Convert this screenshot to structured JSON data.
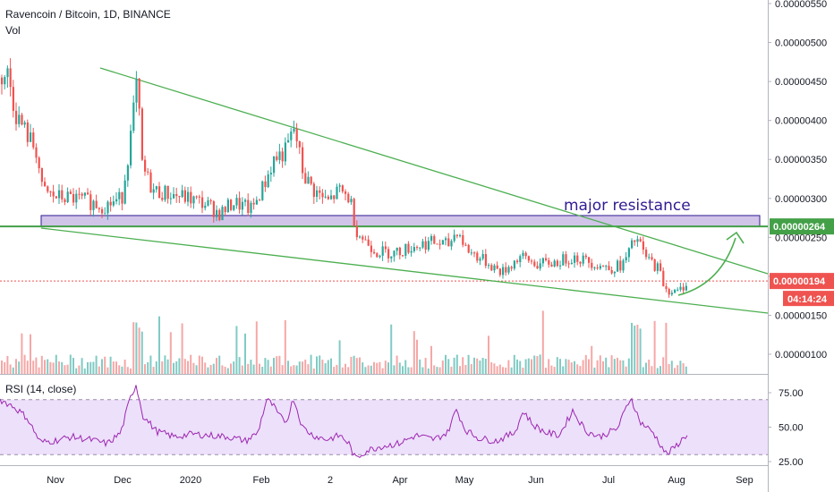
{
  "header": {
    "symbol_line": "Ravencoin / Bitcoin, 1D, BINANCE",
    "volume_label": "Vol",
    "rsi_label": "RSI (14, close)"
  },
  "price_axis": {
    "labels": [
      "0.00000550",
      "0.00000500",
      "0.00000450",
      "0.00000400",
      "0.00000350",
      "0.00000300",
      "0.00000250",
      "0.00000200",
      "0.00000150",
      "0.00000100"
    ]
  },
  "rsi_axis": {
    "labels": [
      "75.00",
      "50.00",
      "25.00"
    ]
  },
  "time_axis": {
    "labels": [
      "Nov",
      "Dec",
      "2020",
      "Feb",
      "2",
      "Apr",
      "May",
      "Jun",
      "Jul",
      "Aug",
      "Sep"
    ]
  },
  "badges": {
    "resistance_price": "0.00000264",
    "last_price": "0.00000194",
    "countdown": "04:14:24"
  },
  "annotation": {
    "text": "major resistance"
  },
  "colors": {
    "up": "#26a69a",
    "down": "#ef5350",
    "trend": "#4caf50",
    "resistance_line": "#43a047",
    "zone_fill": "#b39ddb",
    "zone_stroke": "#311b92",
    "rsi": "#9c27b0",
    "rsi_band": "#ede0fb",
    "last_price_badge": "#ef5350"
  },
  "chart_data": {
    "type": "candlestick",
    "title": "Ravencoin / Bitcoin, 1D, BINANCE",
    "ylim": [
      8e-07,
      5.6e-06
    ],
    "rsi_ylim": [
      20,
      90
    ],
    "rsi_levels": [
      70,
      30
    ],
    "resistance_level": 2.64e-06,
    "last_price": 1.94e-06,
    "resistance_zone": [
      2.64e-06,
      2.78e-06
    ],
    "price_path": [
      [
        0,
        4.55e-06
      ],
      [
        8,
        4.6e-06
      ],
      [
        16,
        4.1e-06
      ],
      [
        30,
        3.8e-06
      ],
      [
        40,
        3.6e-06
      ],
      [
        46,
        3.1e-06
      ],
      [
        60,
        3.02e-06
      ],
      [
        80,
        3e-06
      ],
      [
        95,
        2.97e-06
      ],
      [
        115,
        2.9e-06
      ],
      [
        135,
        3e-06
      ],
      [
        145,
        3.8e-06
      ],
      [
        152,
        4.5e-06
      ],
      [
        158,
        3.4e-06
      ],
      [
        170,
        3.1e-06
      ],
      [
        190,
        3.05e-06
      ],
      [
        210,
        3e-06
      ],
      [
        230,
        2.92e-06
      ],
      [
        245,
        2.8e-06
      ],
      [
        260,
        2.95e-06
      ],
      [
        280,
        2.85e-06
      ],
      [
        295,
        3.2e-06
      ],
      [
        305,
        3.5e-06
      ],
      [
        318,
        3.6e-06
      ],
      [
        328,
        3.9e-06
      ],
      [
        338,
        3.3e-06
      ],
      [
        350,
        3.1e-06
      ],
      [
        365,
        2.95e-06
      ],
      [
        378,
        3.1e-06
      ],
      [
        390,
        3e-06
      ],
      [
        397,
        2.6e-06
      ],
      [
        403,
        2.5e-06
      ],
      [
        420,
        2.32e-06
      ],
      [
        440,
        2.3e-06
      ],
      [
        460,
        2.38e-06
      ],
      [
        480,
        2.44e-06
      ],
      [
        500,
        2.4e-06
      ],
      [
        510,
        2.6e-06
      ],
      [
        520,
        2.35e-06
      ],
      [
        540,
        2.2e-06
      ],
      [
        560,
        2.05e-06
      ],
      [
        580,
        2.25e-06
      ],
      [
        600,
        2.15e-06
      ],
      [
        620,
        2.18e-06
      ],
      [
        640,
        2.25e-06
      ],
      [
        660,
        2.18e-06
      ],
      [
        680,
        2.1e-06
      ],
      [
        695,
        2.15e-06
      ],
      [
        710,
        2.5e-06
      ],
      [
        720,
        2.25e-06
      ],
      [
        735,
        2.1e-06
      ],
      [
        742,
        1.85e-06
      ],
      [
        755,
        1.78e-06
      ],
      [
        768,
        1.94e-06
      ]
    ],
    "rsi_path": [
      [
        0,
        70
      ],
      [
        15,
        65
      ],
      [
        30,
        57
      ],
      [
        45,
        39
      ],
      [
        60,
        40
      ],
      [
        80,
        43
      ],
      [
        100,
        41
      ],
      [
        120,
        38
      ],
      [
        135,
        46
      ],
      [
        145,
        70
      ],
      [
        152,
        81
      ],
      [
        160,
        58
      ],
      [
        175,
        47
      ],
      [
        195,
        43
      ],
      [
        215,
        45
      ],
      [
        235,
        44
      ],
      [
        255,
        43
      ],
      [
        275,
        40
      ],
      [
        288,
        46
      ],
      [
        298,
        70
      ],
      [
        305,
        66
      ],
      [
        312,
        58
      ],
      [
        320,
        54
      ],
      [
        328,
        71
      ],
      [
        338,
        50
      ],
      [
        350,
        44
      ],
      [
        365,
        41
      ],
      [
        380,
        44
      ],
      [
        390,
        38
      ],
      [
        397,
        27
      ],
      [
        410,
        33
      ],
      [
        425,
        36
      ],
      [
        445,
        38
      ],
      [
        465,
        44
      ],
      [
        485,
        41
      ],
      [
        500,
        46
      ],
      [
        510,
        63
      ],
      [
        520,
        48
      ],
      [
        535,
        42
      ],
      [
        555,
        40
      ],
      [
        575,
        46
      ],
      [
        585,
        62
      ],
      [
        595,
        52
      ],
      [
        610,
        46
      ],
      [
        625,
        44
      ],
      [
        640,
        62
      ],
      [
        655,
        47
      ],
      [
        670,
        43
      ],
      [
        690,
        49
      ],
      [
        705,
        72
      ],
      [
        715,
        54
      ],
      [
        730,
        46
      ],
      [
        745,
        30
      ],
      [
        755,
        36
      ],
      [
        768,
        45
      ]
    ]
  }
}
